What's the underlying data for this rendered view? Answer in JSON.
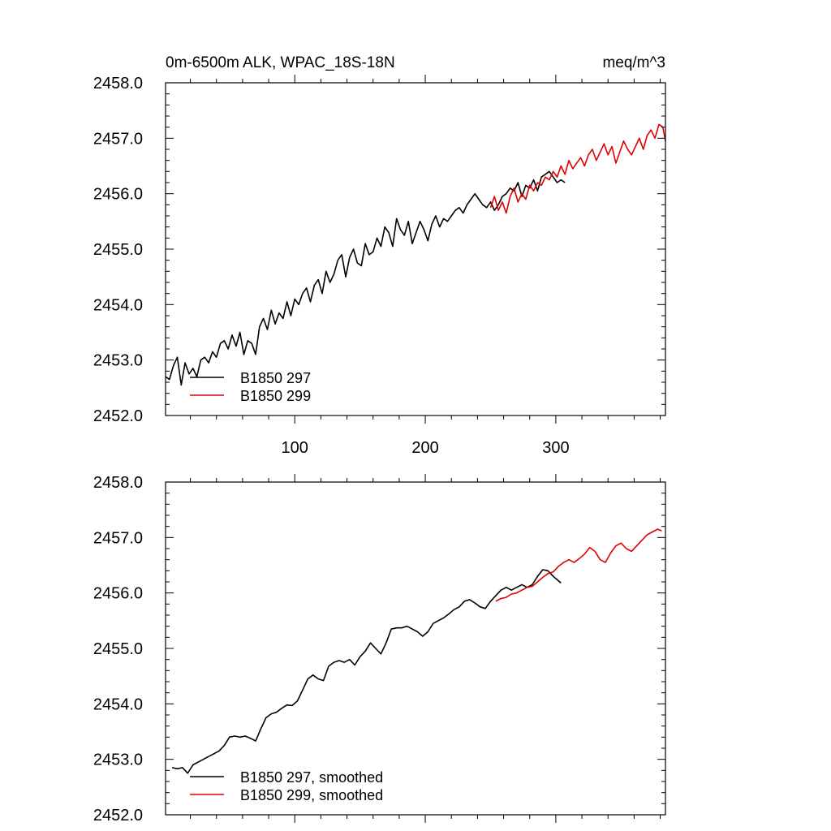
{
  "chart_data": [
    {
      "type": "line",
      "title": "0m-6500m ALK, WPAC_18S-18N",
      "units": "meq/m^3",
      "xlabel": "",
      "ylabel": "",
      "xlim": [
        1,
        384
      ],
      "ylim": [
        2452.0,
        2458.0
      ],
      "xticks": [
        100,
        200,
        300
      ],
      "xtick_labels": [
        "100",
        "200",
        "300"
      ],
      "yticks": [
        2452.0,
        2453.0,
        2454.0,
        2455.0,
        2456.0,
        2457.0,
        2458.0
      ],
      "ytick_labels": [
        "2452.0",
        "2453.0",
        "2454.0",
        "2455.0",
        "2456.0",
        "2457.0",
        "2458.0"
      ],
      "legend_position": "bottom-left",
      "series": [
        {
          "name": "B1850 297",
          "color": "#000000",
          "x": [
            1,
            4,
            7,
            10,
            13,
            16,
            19,
            22,
            25,
            28,
            31,
            34,
            37,
            40,
            43,
            46,
            49,
            52,
            55,
            58,
            61,
            64,
            67,
            70,
            73,
            76,
            79,
            82,
            85,
            88,
            91,
            94,
            97,
            100,
            103,
            106,
            109,
            112,
            115,
            118,
            121,
            124,
            127,
            130,
            133,
            136,
            139,
            142,
            145,
            148,
            151,
            154,
            157,
            160,
            163,
            166,
            169,
            172,
            175,
            178,
            181,
            184,
            187,
            190,
            193,
            196,
            199,
            202,
            205,
            208,
            211,
            214,
            217,
            220,
            223,
            226,
            229,
            232,
            235,
            238,
            241,
            244,
            247,
            250,
            253,
            256,
            259,
            262,
            265,
            268,
            271,
            274,
            277,
            280,
            283,
            286,
            289,
            292,
            295,
            298,
            301,
            304,
            307
          ],
          "values": [
            2452.7,
            2452.65,
            2452.9,
            2453.05,
            2452.55,
            2452.95,
            2452.75,
            2452.85,
            2452.7,
            2453.0,
            2453.05,
            2452.95,
            2453.15,
            2453.05,
            2453.3,
            2453.35,
            2453.2,
            2453.45,
            2453.25,
            2453.5,
            2453.1,
            2453.35,
            2453.3,
            2453.1,
            2453.6,
            2453.75,
            2453.55,
            2453.9,
            2453.65,
            2453.85,
            2453.75,
            2454.05,
            2453.8,
            2454.1,
            2454.0,
            2454.2,
            2454.3,
            2454.05,
            2454.35,
            2454.45,
            2454.2,
            2454.6,
            2454.4,
            2454.55,
            2454.8,
            2454.9,
            2454.5,
            2454.85,
            2455.0,
            2454.75,
            2454.7,
            2455.1,
            2454.9,
            2454.95,
            2455.2,
            2455.05,
            2455.4,
            2455.3,
            2455.05,
            2455.55,
            2455.35,
            2455.25,
            2455.5,
            2455.1,
            2455.3,
            2455.5,
            2455.35,
            2455.15,
            2455.45,
            2455.6,
            2455.4,
            2455.55,
            2455.5,
            2455.6,
            2455.7,
            2455.75,
            2455.65,
            2455.8,
            2455.9,
            2456.0,
            2455.9,
            2455.8,
            2455.75,
            2455.85,
            2455.7,
            2455.8,
            2455.95,
            2456.0,
            2456.1,
            2456.05,
            2456.2,
            2455.95,
            2456.15,
            2456.1,
            2456.25,
            2456.05,
            2456.3,
            2456.35,
            2456.4,
            2456.3,
            2456.2,
            2456.25,
            2456.2
          ]
        },
        {
          "name": "B1850 299",
          "color": "#e00000",
          "x": [
            250,
            253,
            256,
            259,
            262,
            265,
            268,
            271,
            274,
            277,
            280,
            283,
            286,
            289,
            292,
            295,
            298,
            301,
            304,
            307,
            310,
            313,
            316,
            319,
            322,
            325,
            328,
            331,
            334,
            337,
            340,
            343,
            346,
            349,
            352,
            355,
            358,
            361,
            364,
            367,
            370,
            373,
            376,
            379,
            382,
            384
          ],
          "values": [
            2455.75,
            2455.95,
            2455.7,
            2455.85,
            2455.65,
            2455.95,
            2456.1,
            2455.85,
            2456.0,
            2455.9,
            2456.15,
            2456.05,
            2456.2,
            2456.15,
            2456.3,
            2456.25,
            2456.4,
            2456.3,
            2456.5,
            2456.35,
            2456.6,
            2456.45,
            2456.55,
            2456.65,
            2456.5,
            2456.7,
            2456.8,
            2456.6,
            2456.75,
            2456.9,
            2456.7,
            2456.85,
            2456.55,
            2456.75,
            2456.95,
            2456.8,
            2456.7,
            2456.85,
            2457.0,
            2456.8,
            2457.05,
            2457.15,
            2457.0,
            2457.25,
            2457.2,
            2456.95
          ]
        }
      ],
      "legend": [
        {
          "label": "B1850 297",
          "color": "#000000"
        },
        {
          "label": "B1850 299",
          "color": "#e00000"
        }
      ]
    },
    {
      "type": "line",
      "title": "",
      "xlabel": "",
      "ylabel": "",
      "xlim": [
        1,
        384
      ],
      "ylim": [
        2452.0,
        2458.0
      ],
      "xticks": [
        100,
        200,
        300
      ],
      "xtick_labels": [],
      "yticks": [
        2452.0,
        2453.0,
        2454.0,
        2455.0,
        2456.0,
        2457.0,
        2458.0
      ],
      "ytick_labels": [
        "2452.0",
        "2453.0",
        "2454.0",
        "2455.0",
        "2456.0",
        "2457.0",
        "2458.0"
      ],
      "legend_position": "bottom-left",
      "series": [
        {
          "name": "B1850 297, smoothed",
          "color": "#000000",
          "x": [
            6,
            10,
            14,
            18,
            22,
            26,
            30,
            34,
            38,
            42,
            46,
            50,
            54,
            58,
            62,
            66,
            70,
            74,
            78,
            82,
            86,
            90,
            94,
            98,
            102,
            106,
            110,
            114,
            118,
            122,
            126,
            130,
            134,
            138,
            142,
            146,
            150,
            154,
            158,
            162,
            166,
            170,
            174,
            178,
            182,
            186,
            190,
            194,
            198,
            202,
            206,
            210,
            214,
            218,
            222,
            226,
            230,
            234,
            238,
            242,
            246,
            250,
            254,
            258,
            262,
            266,
            270,
            274,
            278,
            282,
            286,
            290,
            294,
            298,
            302,
            304
          ],
          "values": [
            2452.85,
            2452.83,
            2452.85,
            2452.75,
            2452.9,
            2452.95,
            2453.0,
            2453.05,
            2453.1,
            2453.15,
            2453.25,
            2453.4,
            2453.42,
            2453.4,
            2453.42,
            2453.38,
            2453.33,
            2453.55,
            2453.75,
            2453.82,
            2453.85,
            2453.92,
            2453.98,
            2453.97,
            2454.05,
            2454.25,
            2454.45,
            2454.52,
            2454.45,
            2454.42,
            2454.68,
            2454.75,
            2454.78,
            2454.75,
            2454.8,
            2454.7,
            2454.85,
            2454.95,
            2455.1,
            2455.0,
            2454.9,
            2455.1,
            2455.35,
            2455.37,
            2455.37,
            2455.4,
            2455.35,
            2455.3,
            2455.22,
            2455.3,
            2455.45,
            2455.5,
            2455.55,
            2455.62,
            2455.7,
            2455.75,
            2455.85,
            2455.88,
            2455.82,
            2455.75,
            2455.72,
            2455.85,
            2455.95,
            2456.05,
            2456.1,
            2456.05,
            2456.1,
            2456.15,
            2456.1,
            2456.15,
            2456.3,
            2456.42,
            2456.4,
            2456.3,
            2456.22,
            2456.18
          ]
        },
        {
          "name": "B1850 299, smoothed",
          "color": "#e00000",
          "x": [
            254,
            258,
            262,
            266,
            270,
            274,
            278,
            282,
            286,
            290,
            294,
            298,
            302,
            306,
            310,
            314,
            318,
            322,
            326,
            330,
            334,
            338,
            342,
            346,
            350,
            354,
            358,
            362,
            366,
            370,
            374,
            378,
            381
          ],
          "values": [
            2455.85,
            2455.9,
            2455.92,
            2455.98,
            2456.0,
            2456.05,
            2456.1,
            2456.12,
            2456.2,
            2456.28,
            2456.35,
            2456.38,
            2456.48,
            2456.55,
            2456.6,
            2456.55,
            2456.62,
            2456.7,
            2456.82,
            2456.75,
            2456.6,
            2456.55,
            2456.72,
            2456.85,
            2456.9,
            2456.8,
            2456.75,
            2456.85,
            2456.95,
            2457.05,
            2457.1,
            2457.15,
            2457.12
          ]
        }
      ],
      "legend": [
        {
          "label": "B1850 297, smoothed",
          "color": "#000000"
        },
        {
          "label": "B1850 299, smoothed",
          "color": "#e00000"
        }
      ]
    }
  ]
}
